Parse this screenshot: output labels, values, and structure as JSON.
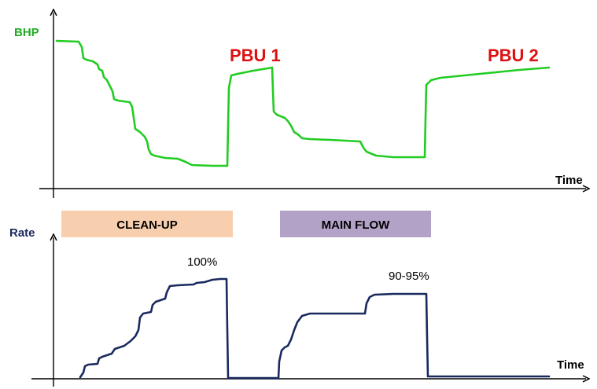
{
  "top_panel": {
    "ylabel": "BHP",
    "xlabel": "Time",
    "annotations": {
      "pbu1": "PBU 1",
      "pbu2": "PBU 2"
    }
  },
  "bottom_panel": {
    "ylabel": "Rate",
    "xlabel": "Time",
    "annotations": {
      "full_rate": "100%",
      "reduced_rate": "90-95%"
    }
  },
  "phases": {
    "cleanup": "CLEAN-UP",
    "main_flow": "MAIN FLOW"
  },
  "colors": {
    "bhp_curve": "#22cc22",
    "rate_curve": "#1a2a5e",
    "pbu_text": "#dd1111",
    "bhp_label": "#22aa22",
    "rate_label": "#1a2a5e",
    "cleanup_box": "#f7cfae",
    "main_flow_box": "#b3a2c7",
    "axis": "#000000"
  }
}
